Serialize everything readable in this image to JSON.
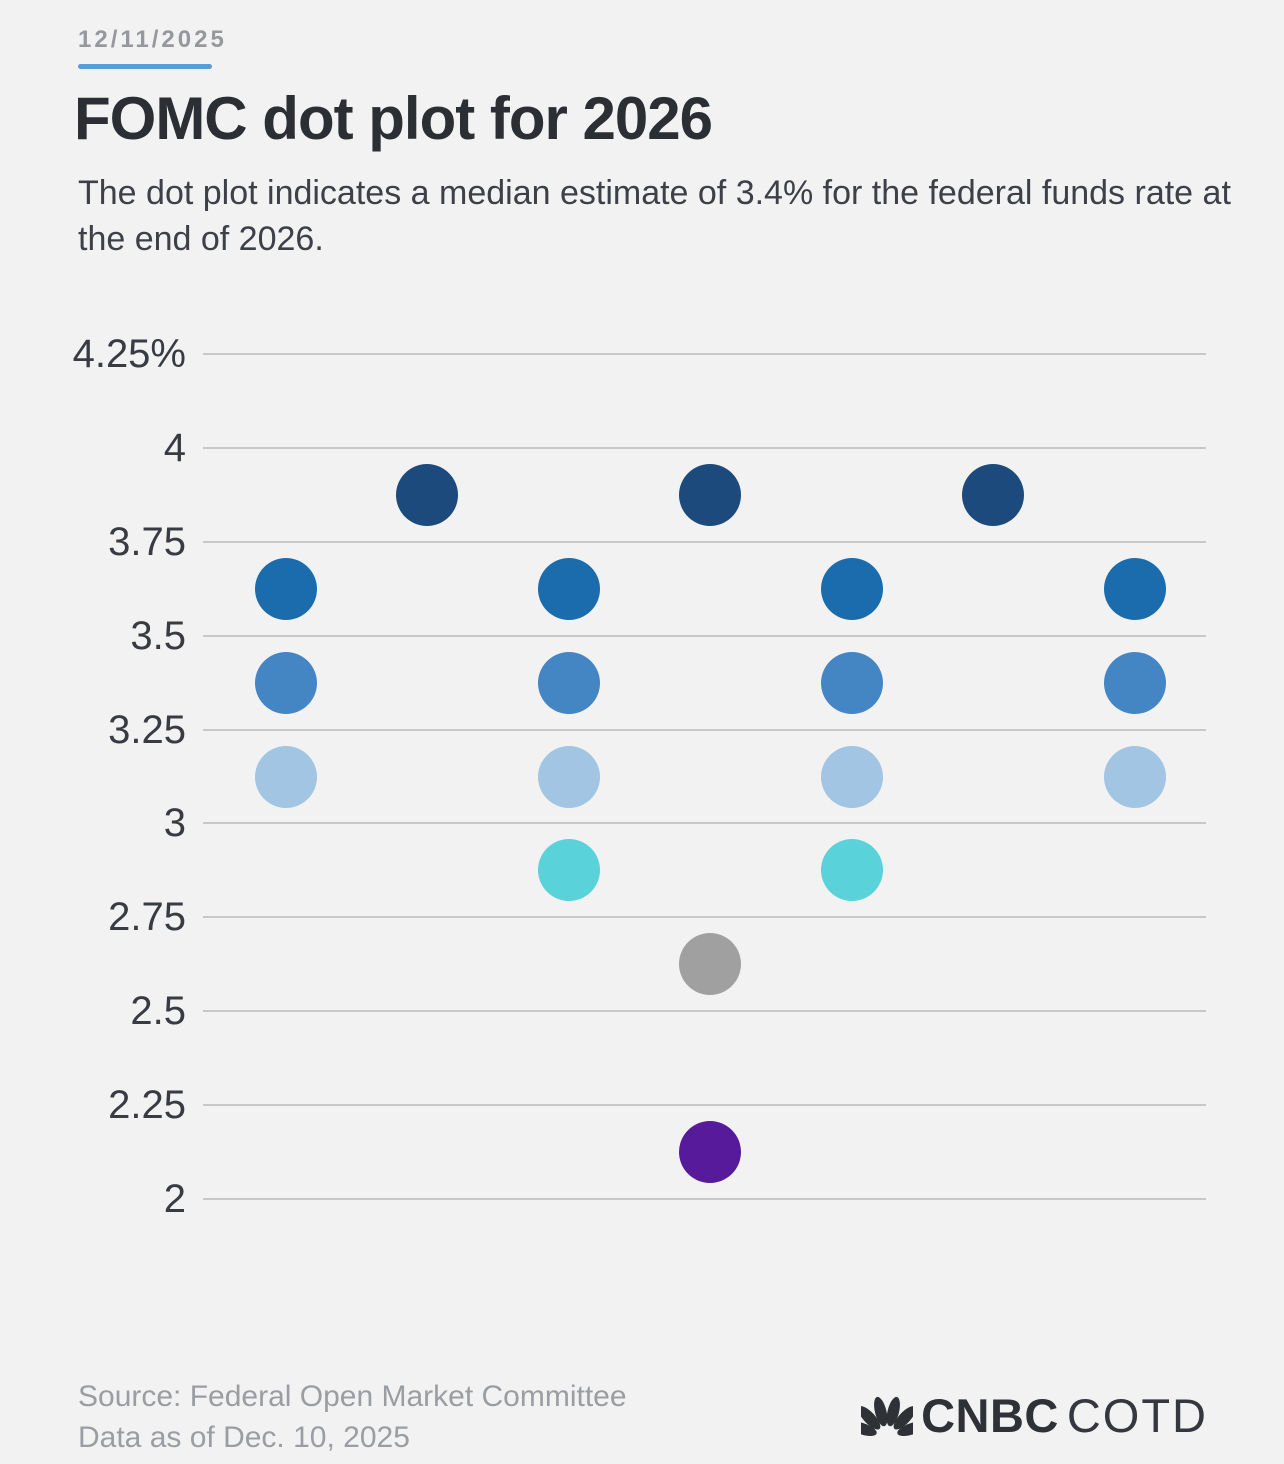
{
  "header": {
    "date": "12/11/2025",
    "title": "FOMC dot plot for 2026",
    "subtitle_line1": "The dot plot indicates a median estimate of 3.4% for the federal funds rate at",
    "subtitle_line2": "the end of 2026."
  },
  "chart_data": {
    "type": "scatter",
    "title": "FOMC dot plot for 2026",
    "ylim": [
      2,
      4.25
    ],
    "grid": true,
    "legend": false,
    "y_ticks": [
      {
        "value": 4.25,
        "label": "4.25%"
      },
      {
        "value": 4.0,
        "label": "4"
      },
      {
        "value": 3.75,
        "label": "3.75"
      },
      {
        "value": 3.5,
        "label": "3.5"
      },
      {
        "value": 3.25,
        "label": "3.25"
      },
      {
        "value": 3.0,
        "label": "3"
      },
      {
        "value": 2.75,
        "label": "2.75"
      },
      {
        "value": 2.5,
        "label": "2.5"
      },
      {
        "value": 2.25,
        "label": "2.25"
      },
      {
        "value": 2.0,
        "label": "2"
      }
    ],
    "median_estimate_label": "3.4%",
    "rows": [
      {
        "rate": 3.875,
        "count": 3,
        "color": "#1d4a7d"
      },
      {
        "rate": 3.625,
        "count": 4,
        "color": "#1b6cac"
      },
      {
        "rate": 3.375,
        "count": 4,
        "color": "#4486c4"
      },
      {
        "rate": 3.125,
        "count": 4,
        "color": "#a1c5e2"
      },
      {
        "rate": 2.875,
        "count": 2,
        "color": "#59d2da"
      },
      {
        "rate": 2.625,
        "count": 1,
        "color": "#a0a0a0"
      },
      {
        "rate": 2.125,
        "count": 1,
        "color": "#571a9a"
      }
    ]
  },
  "footer": {
    "source_line1": "Source: Federal Open Market Committee",
    "source_line2": "Data as of Dec. 10, 2025",
    "logo": {
      "icon": "cnbc-peacock-icon",
      "brand": "CNBC",
      "suffix": "COTD"
    }
  },
  "colors": {
    "background": "#f2f2f3",
    "accent_underline": "#5b9bd8",
    "gridline": "#c8c8c9",
    "title_text": "#2b2e33",
    "subtitle_text": "#3d4147",
    "tick_text": "#383c42",
    "muted_text": "#9a9da2",
    "logo_text": "#2e3237"
  }
}
